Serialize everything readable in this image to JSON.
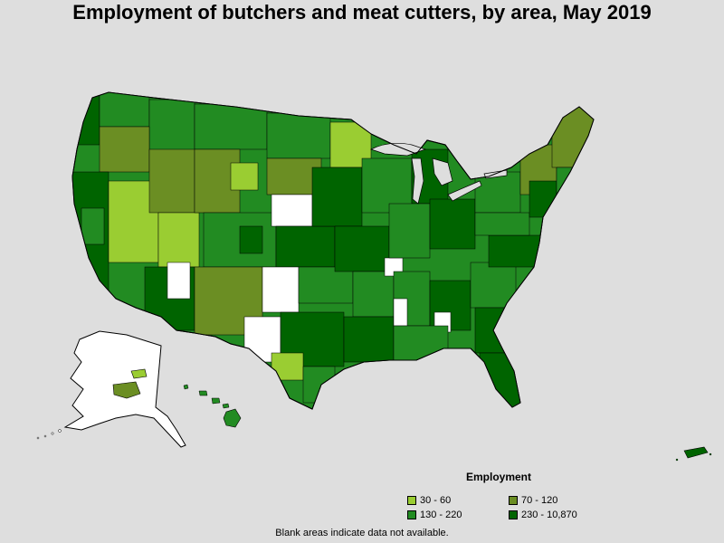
{
  "title": "Employment of butchers and meat cutters, by area, May 2019",
  "legend": {
    "title": "Employment",
    "items": [
      {
        "label": "30 - 60",
        "color": "#9acd32"
      },
      {
        "label": "70 - 120",
        "color": "#6b8e23"
      },
      {
        "label": "130 - 220",
        "color": "#228b22"
      },
      {
        "label": "230 - 10,870",
        "color": "#006400"
      }
    ]
  },
  "footnote": "Blank areas indicate data not available.",
  "colors": {
    "background": "#dedede",
    "no_data": "#ffffff",
    "border": "#000000"
  }
}
